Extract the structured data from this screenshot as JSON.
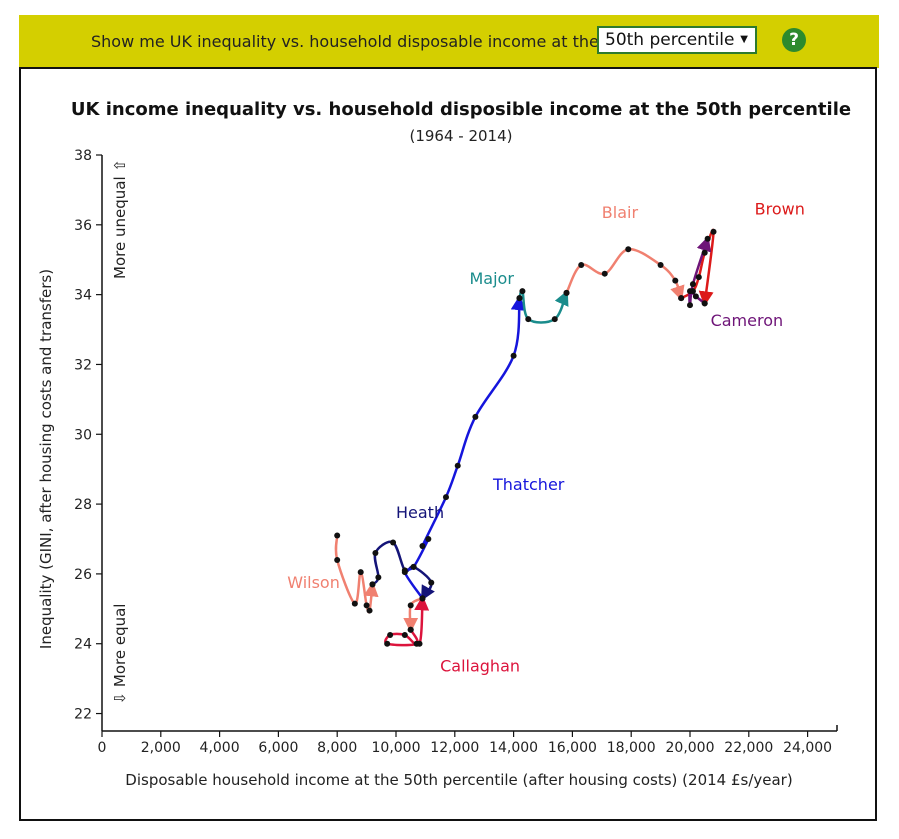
{
  "controls": {
    "prompt": "Show me UK inequality vs. household disposable income at the",
    "percentile_selected": "50th percentile",
    "help_label": "?"
  },
  "chart_data": {
    "type": "line",
    "title": "UK income inequality vs. household disposible income at the 50th percentile",
    "subtitle": "(1964 - 2014)",
    "xlabel": "Disposable household income at the 50th percentile (after housing costs) (2014 £s/year)",
    "ylabel": "Inequality (GINI, after housing costs and transfers)",
    "more_unequal": "More unequal ⇧",
    "more_equal": "⇩ More equal",
    "xlim": [
      0,
      25000
    ],
    "ylim": [
      21.5,
      38
    ],
    "x_ticks": [
      0,
      2000,
      4000,
      6000,
      8000,
      10000,
      12000,
      14000,
      16000,
      18000,
      20000,
      22000,
      24000
    ],
    "x_tick_labels": [
      "0",
      "2,000",
      "4,000",
      "6,000",
      "8,000",
      "10,000",
      "12,000",
      "14,000",
      "16,000",
      "18,000",
      "20,000",
      "22,000",
      "24,000"
    ],
    "y_ticks": [
      22,
      24,
      26,
      28,
      30,
      32,
      34,
      36,
      38
    ],
    "y_tick_labels": [
      "22",
      "24",
      "26",
      "28",
      "30",
      "32",
      "34",
      "36",
      "38"
    ],
    "series": [
      {
        "name": "Wilson",
        "color": "#f08070",
        "label_at": [
          6300,
          25.6
        ],
        "points": [
          [
            8000,
            27.1
          ],
          [
            8000,
            26.4
          ],
          [
            8600,
            25.15
          ],
          [
            8800,
            26.05
          ],
          [
            9000,
            25.1
          ],
          [
            9100,
            24.95
          ],
          [
            9200,
            25.7
          ]
        ]
      },
      {
        "name": "Heath",
        "color": "#141478",
        "label_at": [
          10000,
          27.6
        ],
        "points": [
          [
            9200,
            25.7
          ],
          [
            9400,
            25.9
          ],
          [
            9300,
            26.6
          ],
          [
            9900,
            26.9
          ],
          [
            10300,
            26.1
          ],
          [
            10600,
            26.2
          ],
          [
            11200,
            25.75
          ],
          [
            10900,
            25.3
          ]
        ]
      },
      {
        "name": "Wilson",
        "color": "#f08070",
        "label_at": null,
        "points": [
          [
            10900,
            25.3
          ],
          [
            10500,
            25.1
          ],
          [
            10500,
            24.4
          ]
        ]
      },
      {
        "name": "Callaghan",
        "color": "#dc143c",
        "label_at": [
          11500,
          23.2
        ],
        "points": [
          [
            10500,
            24.4
          ],
          [
            10700,
            24.0
          ],
          [
            9700,
            24.0
          ],
          [
            9800,
            24.25
          ],
          [
            10300,
            24.25
          ],
          [
            10800,
            24.0
          ],
          [
            10900,
            25.3
          ]
        ]
      },
      {
        "name": "Thatcher",
        "color": "#1515dc",
        "label_at": [
          13300,
          28.4
        ],
        "points": [
          [
            10900,
            25.3
          ],
          [
            10300,
            26.05
          ],
          [
            10600,
            26.2
          ],
          [
            11100,
            27.0
          ],
          [
            10900,
            26.8
          ],
          [
            11700,
            28.2
          ],
          [
            12100,
            29.1
          ],
          [
            12700,
            30.5
          ],
          [
            14000,
            32.25
          ],
          [
            14200,
            33.9
          ]
        ]
      },
      {
        "name": "Major",
        "color": "#1a8c8c",
        "label_at": [
          12500,
          34.3
        ],
        "points": [
          [
            14200,
            33.9
          ],
          [
            14300,
            34.1
          ],
          [
            14500,
            33.3
          ],
          [
            15400,
            33.3
          ],
          [
            15800,
            34.05
          ]
        ]
      },
      {
        "name": "Blair",
        "color": "#f08070",
        "label_at": [
          17000,
          36.2
        ],
        "points": [
          [
            15800,
            34.05
          ],
          [
            16300,
            34.85
          ],
          [
            17100,
            34.6
          ],
          [
            17900,
            35.3
          ],
          [
            19000,
            34.85
          ],
          [
            19500,
            34.4
          ],
          [
            19700,
            33.9
          ]
        ]
      },
      {
        "name": "Brown",
        "color": "#dc1a1a",
        "label_at": [
          22200,
          36.3
        ],
        "points": [
          [
            19700,
            33.9
          ],
          [
            20100,
            34.1
          ],
          [
            20300,
            34.5
          ],
          [
            20500,
            35.2
          ],
          [
            20800,
            35.8
          ],
          [
            20500,
            33.75
          ]
        ]
      },
      {
        "name": "Cameron",
        "color": "#6e1478",
        "label_at": [
          20700,
          33.1
        ],
        "points": [
          [
            20500,
            33.75
          ],
          [
            20200,
            33.95
          ],
          [
            20000,
            34.1
          ],
          [
            20000,
            33.7
          ],
          [
            20100,
            34.3
          ],
          [
            20600,
            35.6
          ]
        ]
      }
    ]
  }
}
